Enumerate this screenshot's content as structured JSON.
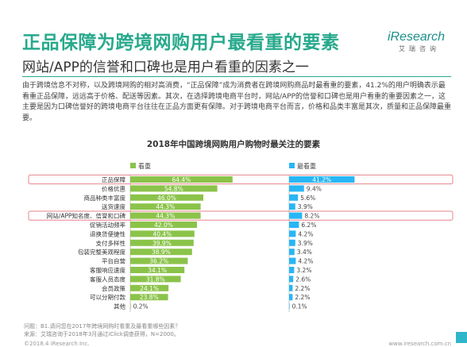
{
  "header": {
    "title": "正品保障为跨境网购用户最看重的要素",
    "logo_text": "iResearch",
    "logo_sub": "艾瑞咨询"
  },
  "subtitle": "网站/APP的信誉和口碑也是用户看重的因素之一",
  "description": "由于跨境信息不对称，以及跨境网购的相对高消费，“正品保障”成为消费者在跨境网购商品时最看重的要素，41.2%的用户明确表示最看重正品保障，远远高于价格、配送等因素。其次，在选择跨境电商平台时，网站/APP的信誉和口碑也是用户看重的重要因素之一，这主要是因为口碑信誉好的跨境电商平台往往在正品方面更有保障。对于跨境电商平台而言，价格和品类丰富是其次，质量和正品保障最重要。",
  "colors": {
    "accent": "#27a98c",
    "bar_left": "#8bc34a",
    "bar_right": "#29b6f6",
    "highlight_border": "#e8828c"
  },
  "chart_data": {
    "type": "bar",
    "title": "2018年中国跨境网购用户购物时最关注的要素",
    "categories": [
      "正品保障",
      "价格优惠",
      "商品种类丰富度",
      "送货速度",
      "网站/APP知名度、信誉和口碑",
      "促销活动频率",
      "退换货便捷性",
      "支付多样性",
      "包装完整美观程度",
      "平台自营",
      "客服响应速度",
      "客服人员态度",
      "会员政策",
      "可以分期付款",
      "其他"
    ],
    "series": [
      {
        "name": "看重",
        "values": [
          64.4,
          54.8,
          46.0,
          44.3,
          44.3,
          42.0,
          40.4,
          39.9,
          38.9,
          36.2,
          34.1,
          31.8,
          24.1,
          23.8,
          0.2
        ],
        "labels": [
          "64.4%",
          "54.8%",
          "46.0%",
          "44.3%",
          "44.3%",
          "42.0%",
          "40.4%",
          "39.9%",
          "38.9%",
          "36.2%",
          "34.1%",
          "31.8%",
          "24.1%",
          "23.8%",
          "0.2%"
        ]
      },
      {
        "name": "最看重",
        "values": [
          41.2,
          9.4,
          5.6,
          3.9,
          8.2,
          6.2,
          4.2,
          3.9,
          3.4,
          4.2,
          3.2,
          2.6,
          2.2,
          2.2,
          0.1
        ],
        "labels": [
          "41.2%",
          "9.4%",
          "5.6%",
          "3.9%",
          "8.2%",
          "6.2%",
          "4.2%",
          "3.9%",
          "3.4%",
          "4.2%",
          "3.2%",
          "2.6%",
          "2.2%",
          "2.2%",
          "0.1%"
        ]
      }
    ],
    "highlighted_categories": [
      "正品保障",
      "网站/APP知名度、信誉和口碑"
    ],
    "legend_position": "top"
  },
  "footnotes": [
    "问题：B1.请问您在2017年跨境网购时看重及最看重哪些因素？",
    "来源：艾瑞咨询于2018年3月通过iClick调查获得，N=2000。"
  ],
  "footer": {
    "left": "©2018.4 iResearch Inc.",
    "right": "www.iresearch.com.cn"
  }
}
